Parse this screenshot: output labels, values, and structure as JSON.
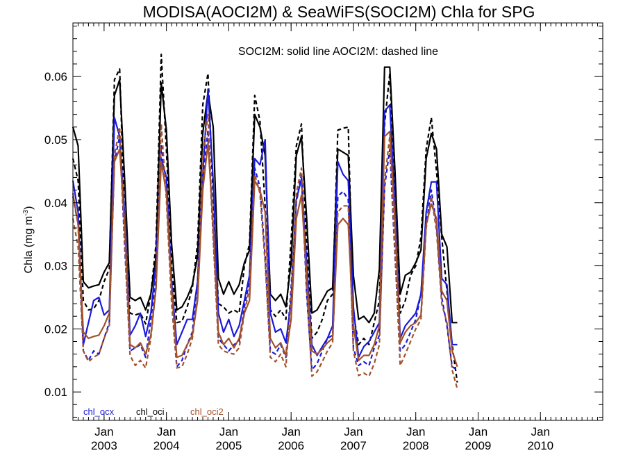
{
  "chart_data": {
    "type": "line",
    "title": "MODISA(AOCI2M) & SeaWiFS(SOCI2M)  Chla for SPG",
    "ylabel": "Chla (mg m",
    "ylabel_sup": "-3",
    "ylabel_suffix": ")",
    "annotation": "SOCI2M: solid line   AOCI2M: dashed line",
    "xlim": [
      2002.5,
      2011.0
    ],
    "ylim": [
      0.0055,
      0.0685
    ],
    "yticks": [
      0.01,
      0.02,
      0.03,
      0.04,
      0.05,
      0.06
    ],
    "ytick_labels": [
      "0.01",
      "0.02",
      "0.03",
      "0.04",
      "0.05",
      "0.06"
    ],
    "xticks": [
      {
        "x": 2003,
        "month": "Jan",
        "year": "2003"
      },
      {
        "x": 2004,
        "month": "Jan",
        "year": "2004"
      },
      {
        "x": 2005,
        "month": "Jan",
        "year": "2005"
      },
      {
        "x": 2006,
        "month": "Jan",
        "year": "2006"
      },
      {
        "x": 2007,
        "month": "Jan",
        "year": "2007"
      },
      {
        "x": 2008,
        "month": "Jan",
        "year": "2008"
      },
      {
        "x": 2009,
        "month": "Jan",
        "year": "2009"
      },
      {
        "x": 2010,
        "month": "Jan",
        "year": "2010"
      }
    ],
    "x_start": 2002.5,
    "x_step": 0.0833333,
    "legend": [
      {
        "label": "chl_ocx",
        "color": "#1a1adc"
      },
      {
        "label": "chl_oci",
        "color": "#000000"
      },
      {
        "label": "chl_oci2",
        "color": "#a0522d"
      }
    ],
    "series": [
      {
        "name": "chl_oci",
        "line": "solid",
        "color": "#000000",
        "values": [
          0.052,
          0.049,
          0.0275,
          0.0265,
          0.0268,
          0.027,
          0.029,
          0.0305,
          0.057,
          0.0595,
          0.043,
          0.025,
          0.0245,
          0.025,
          0.023,
          0.0255,
          0.0315,
          0.059,
          0.0515,
          0.0335,
          0.023,
          0.0235,
          0.025,
          0.027,
          0.0315,
          0.051,
          0.0575,
          0.052,
          0.028,
          0.0255,
          0.0275,
          0.0255,
          0.027,
          0.0305,
          0.0325,
          0.054,
          0.052,
          0.0475,
          0.0255,
          0.0245,
          0.0255,
          0.0235,
          0.0305,
          0.0475,
          0.0505,
          0.0375,
          0.0225,
          0.023,
          0.0245,
          0.026,
          0.0265,
          0.0485,
          0.048,
          0.0475,
          0.0285,
          0.0215,
          0.022,
          0.021,
          0.0225,
          0.0295,
          0.0615,
          0.0615,
          0.045,
          0.0255,
          0.0285,
          0.029,
          0.0305,
          0.0325,
          0.047,
          0.051,
          0.0485,
          0.035,
          0.033,
          0.021,
          0.021
        ]
      },
      {
        "name": "chl_oci",
        "line": "dashed",
        "color": "#000000",
        "values": [
          0.047,
          0.0435,
          0.0245,
          0.023,
          0.0232,
          0.0245,
          0.0275,
          0.0295,
          0.0595,
          0.0612,
          0.036,
          0.0225,
          0.0222,
          0.0225,
          0.0208,
          0.0255,
          0.0335,
          0.0635,
          0.0485,
          0.03,
          0.021,
          0.0212,
          0.0235,
          0.0265,
          0.0335,
          0.0555,
          0.0605,
          0.041,
          0.024,
          0.0235,
          0.0225,
          0.023,
          0.0225,
          0.03,
          0.0335,
          0.057,
          0.053,
          0.0395,
          0.023,
          0.022,
          0.023,
          0.0215,
          0.034,
          0.049,
          0.0525,
          0.033,
          0.0185,
          0.0195,
          0.0215,
          0.0245,
          0.0255,
          0.0515,
          0.0518,
          0.052,
          0.0225,
          0.0175,
          0.0185,
          0.0175,
          0.021,
          0.0245,
          0.0525,
          0.0605,
          0.0405,
          0.0225,
          0.0245,
          0.0285,
          0.03,
          0.0345,
          0.0485,
          0.0535,
          0.045,
          0.0345,
          0.026,
          0.0175,
          0.0115
        ]
      },
      {
        "name": "chl_ocx",
        "line": "solid",
        "color": "#1a1adc",
        "values": [
          0.0435,
          0.0385,
          0.0175,
          0.021,
          0.0245,
          0.025,
          0.0222,
          0.023,
          0.0535,
          0.0505,
          0.0375,
          0.019,
          0.0205,
          0.0225,
          0.0188,
          0.0225,
          0.0305,
          0.047,
          0.044,
          0.0275,
          0.0175,
          0.0195,
          0.0215,
          0.0215,
          0.0275,
          0.0445,
          0.058,
          0.0435,
          0.0225,
          0.0195,
          0.0215,
          0.0188,
          0.0205,
          0.0245,
          0.0285,
          0.047,
          0.046,
          0.05,
          0.0225,
          0.0195,
          0.02,
          0.0178,
          0.0245,
          0.0405,
          0.0438,
          0.0305,
          0.0175,
          0.0158,
          0.0172,
          0.0185,
          0.0205,
          0.0465,
          0.0445,
          0.0435,
          0.0235,
          0.0155,
          0.0172,
          0.018,
          0.0195,
          0.021,
          0.0545,
          0.0555,
          0.0395,
          0.0185,
          0.0205,
          0.0215,
          0.0225,
          0.0255,
          0.0385,
          0.0433,
          0.0433,
          0.028,
          0.027,
          0.0175,
          0.0175
        ]
      },
      {
        "name": "chl_ocx",
        "line": "dashed",
        "color": "#1a1adc",
        "values": [
          0.041,
          0.0365,
          0.0165,
          0.015,
          0.0165,
          0.016,
          0.0185,
          0.021,
          0.0465,
          0.0505,
          0.0325,
          0.0165,
          0.017,
          0.0175,
          0.0155,
          0.0215,
          0.028,
          0.049,
          0.0415,
          0.025,
          0.014,
          0.015,
          0.0175,
          0.0195,
          0.0275,
          0.0435,
          0.0515,
          0.0345,
          0.0185,
          0.0175,
          0.0165,
          0.0175,
          0.018,
          0.0235,
          0.0275,
          0.0455,
          0.0425,
          0.0315,
          0.0165,
          0.016,
          0.0175,
          0.0155,
          0.0265,
          0.04,
          0.0445,
          0.0255,
          0.0135,
          0.0145,
          0.0165,
          0.0185,
          0.019,
          0.041,
          0.0418,
          0.0405,
          0.017,
          0.0142,
          0.0148,
          0.0142,
          0.017,
          0.019,
          0.0425,
          0.0485,
          0.0315,
          0.0165,
          0.0175,
          0.0195,
          0.0215,
          0.0255,
          0.0365,
          0.042,
          0.0365,
          0.025,
          0.0205,
          0.014,
          0.0135
        ]
      },
      {
        "name": "chl_oci2",
        "line": "solid",
        "color": "#a0522d",
        "values": [
          0.0415,
          0.0365,
          0.0195,
          0.0185,
          0.0188,
          0.019,
          0.0205,
          0.0225,
          0.0465,
          0.0485,
          0.036,
          0.0175,
          0.017,
          0.0178,
          0.016,
          0.019,
          0.0265,
          0.0465,
          0.0415,
          0.0265,
          0.0155,
          0.0158,
          0.0175,
          0.019,
          0.0245,
          0.042,
          0.0495,
          0.0365,
          0.0195,
          0.0175,
          0.0185,
          0.017,
          0.0185,
          0.0225,
          0.0245,
          0.0435,
          0.042,
          0.0385,
          0.0185,
          0.017,
          0.0178,
          0.0158,
          0.0215,
          0.0375,
          0.0412,
          0.0285,
          0.0165,
          0.016,
          0.0168,
          0.0178,
          0.0185,
          0.0365,
          0.0375,
          0.0365,
          0.0205,
          0.015,
          0.0158,
          0.0158,
          0.0175,
          0.0205,
          0.0505,
          0.0513,
          0.037,
          0.0178,
          0.0195,
          0.0205,
          0.021,
          0.0222,
          0.0365,
          0.0398,
          0.0375,
          0.026,
          0.0245,
          0.0165,
          0.014
        ]
      },
      {
        "name": "chl_oci2",
        "line": "dashed",
        "color": "#a0522d",
        "values": [
          0.0375,
          0.033,
          0.0165,
          0.0148,
          0.0155,
          0.016,
          0.0185,
          0.0205,
          0.0475,
          0.052,
          0.0335,
          0.0158,
          0.0142,
          0.015,
          0.0138,
          0.0185,
          0.0265,
          0.0525,
          0.0405,
          0.024,
          0.0138,
          0.014,
          0.016,
          0.0185,
          0.025,
          0.0475,
          0.054,
          0.0345,
          0.0175,
          0.0165,
          0.0162,
          0.016,
          0.017,
          0.0225,
          0.0265,
          0.0445,
          0.0415,
          0.0305,
          0.0155,
          0.0148,
          0.016,
          0.014,
          0.025,
          0.0415,
          0.0455,
          0.0265,
          0.0125,
          0.0132,
          0.0148,
          0.0165,
          0.0178,
          0.0385,
          0.0395,
          0.0395,
          0.0165,
          0.0126,
          0.013,
          0.0125,
          0.0145,
          0.0175,
          0.0435,
          0.0505,
          0.032,
          0.0142,
          0.016,
          0.018,
          0.02,
          0.0215,
          0.036,
          0.041,
          0.0355,
          0.024,
          0.021,
          0.0135,
          0.0105
        ]
      }
    ]
  }
}
